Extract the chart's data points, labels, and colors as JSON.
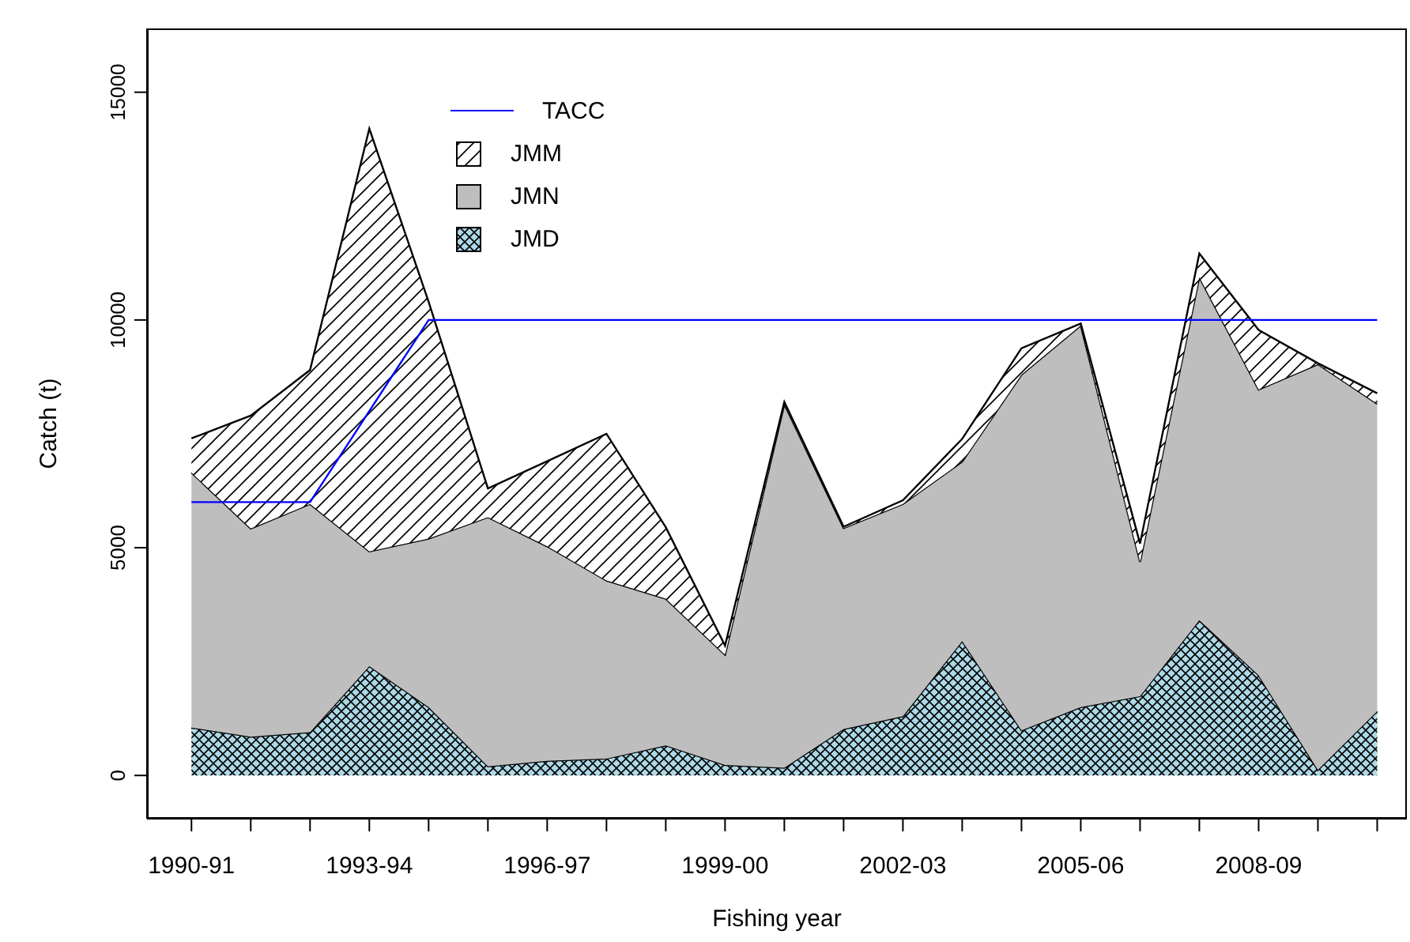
{
  "chart_data": {
    "type": "area",
    "stacked": true,
    "xlabel": "Fishing year",
    "ylabel": "Catch (t)",
    "categories": [
      "1990-91",
      null,
      null,
      "1993-94",
      null,
      null,
      "1996-97",
      null,
      null,
      "1999-00",
      null,
      null,
      "2002-03",
      null,
      null,
      "2005-06",
      null,
      null,
      "2008-09",
      null,
      null
    ],
    "ylim": [
      -950,
      16400
    ],
    "yticks": [
      0,
      5000,
      10000,
      15000
    ],
    "grid": false,
    "legend": "top",
    "series": [
      {
        "name": "JMD",
        "color": "#add8e6",
        "values": [
          1050,
          850,
          950,
          2400,
          1500,
          200,
          320,
          370,
          660,
          230,
          170,
          1020,
          1300,
          2950,
          990,
          1500,
          1740,
          3410,
          2200,
          120,
          1410
        ]
      },
      {
        "name": "JMN",
        "color": "#bebebe",
        "values": [
          5600,
          4570,
          5010,
          2520,
          3700,
          5470,
          4710,
          3910,
          3220,
          2420,
          7980,
          4410,
          4660,
          3940,
          7810,
          8380,
          2950,
          7530,
          6270,
          8910,
          6750
        ]
      },
      {
        "name": "JMM",
        "color": "#ffffff",
        "values": [
          750,
          2480,
          2940,
          9280,
          5200,
          630,
          1870,
          3220,
          1570,
          200,
          50,
          30,
          80,
          500,
          580,
          40,
          400,
          520,
          1310,
          20,
          230
        ]
      },
      {
        "name": "TACC",
        "type": "line",
        "color": "#0000ff",
        "values": [
          6000,
          6000,
          6000,
          8000,
          10000,
          10000,
          10000,
          10000,
          10000,
          10000,
          10000,
          10000,
          10000,
          10000,
          10000,
          10000,
          10000,
          10000,
          10000,
          10000,
          10000
        ]
      }
    ]
  }
}
